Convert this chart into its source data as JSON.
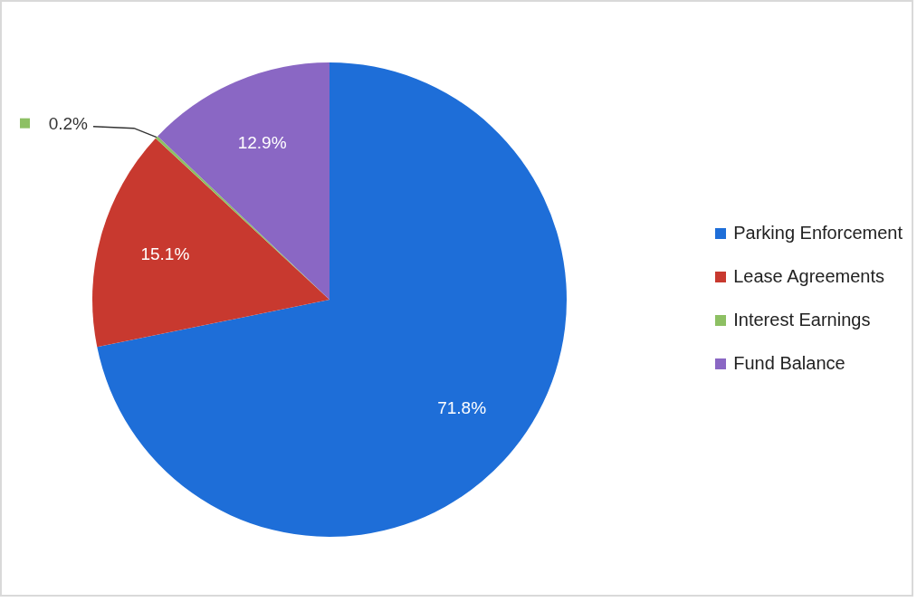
{
  "chart_data": {
    "type": "pie",
    "categories": [
      "Parking Enforcement",
      "Lease Agreements",
      "Interest Earnings",
      "Fund Balance"
    ],
    "values": [
      71.8,
      15.1,
      0.2,
      12.9
    ],
    "value_labels": [
      "71.8%",
      "15.1%",
      "0.2%",
      "12.9%"
    ],
    "colors": [
      "#1e6ed8",
      "#c8392f",
      "#8dc063",
      "#8a67c4"
    ],
    "legend": "right"
  }
}
